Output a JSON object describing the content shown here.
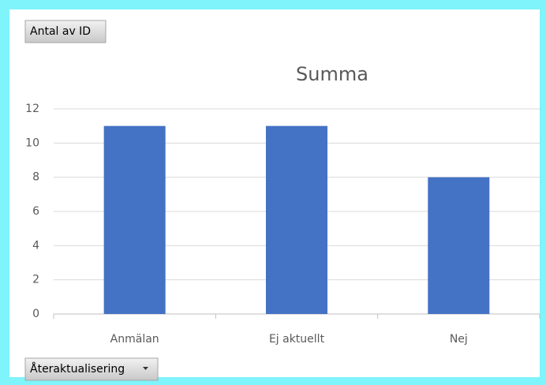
{
  "chart_data": {
    "type": "bar",
    "title": "Summa",
    "value_field": "Antal av ID",
    "axis_field": "Återaktualisering",
    "categories": [
      "Anmälan",
      "Ej aktuellt",
      "Nej"
    ],
    "values": [
      11,
      11,
      8
    ],
    "color": "#4472c4",
    "ylim": [
      0,
      12
    ],
    "yticks": [
      0,
      2,
      4,
      6,
      8,
      10,
      12
    ],
    "grid": true
  }
}
